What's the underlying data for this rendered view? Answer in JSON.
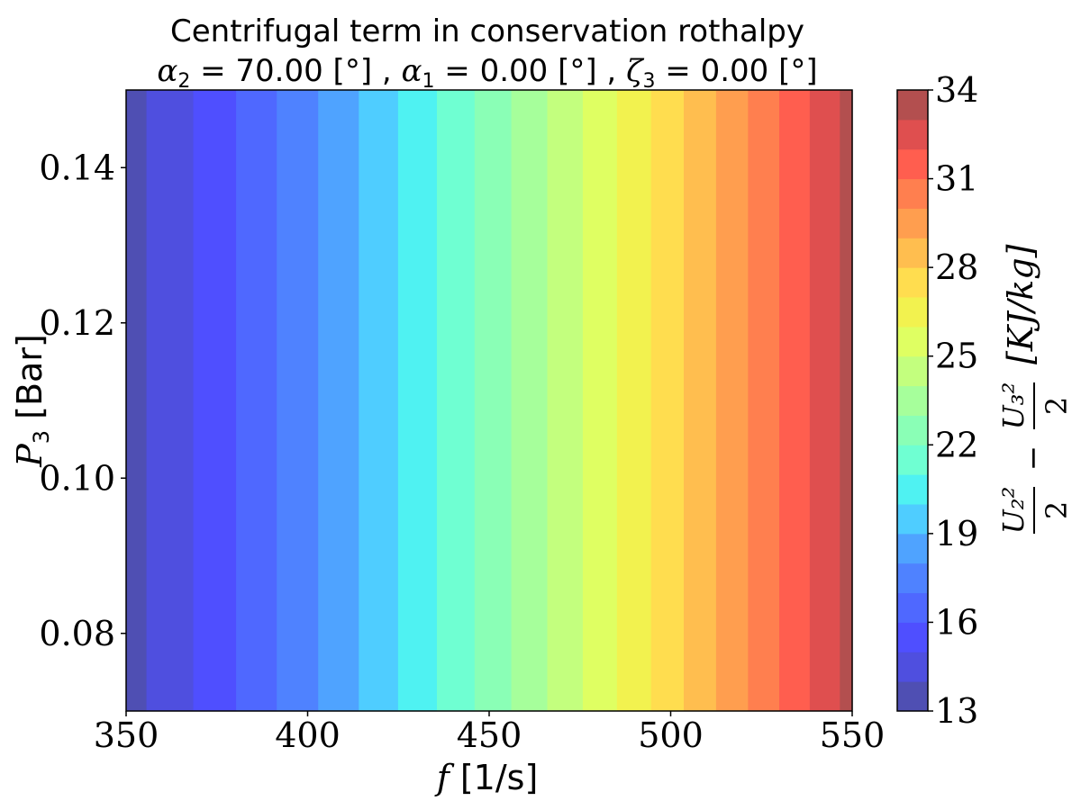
{
  "chart_data": {
    "type": "heatmap",
    "subtype": "filled-contour",
    "title": "Centrifugal term in conservation rothalpy",
    "subtitle": {
      "alpha2_sym": "α",
      "alpha2_sub": "2",
      "alpha2_val": " = 70.00 [°] , ",
      "alpha1_sym": "α",
      "alpha1_sub": "1",
      "alpha1_val": " = 0.00 [°] , ",
      "zeta3_sym": "ζ",
      "zeta3_sub": "3",
      "zeta3_val": " = 0.00 [°]"
    },
    "xlabel": {
      "sym": "f",
      "unit": " [1/s]"
    },
    "ylabel": {
      "sym": "P",
      "sub": "3",
      "unit": " [Bar]"
    },
    "colorbar_label": "U₂²/2 − U₃²/2 [KJ/kg]",
    "xlim": [
      350,
      550
    ],
    "ylim": [
      0.07,
      0.15
    ],
    "xticks": [
      "350",
      "400",
      "450",
      "500",
      "550"
    ],
    "yticks": [
      "0.08",
      "0.10",
      "0.12",
      "0.14"
    ],
    "colorbar_ticks": [
      "13",
      "16",
      "19",
      "22",
      "25",
      "28",
      "31",
      "34"
    ],
    "colorbar_range": [
      13,
      34
    ],
    "levels": [
      13,
      14,
      15,
      16,
      17,
      18,
      19,
      20,
      21,
      22,
      23,
      24,
      25,
      26,
      27,
      28,
      29,
      30,
      31,
      32,
      33,
      34
    ],
    "level_colors": [
      "#4f4fb3",
      "#4f4fdf",
      "#4f4fff",
      "#4f68ff",
      "#4f82ff",
      "#4fa3ff",
      "#4fcdff",
      "#4ff2f2",
      "#6fffd2",
      "#8affb6",
      "#a6ff9b",
      "#c3ff7e",
      "#dfff62",
      "#f2f24f",
      "#ffdd4f",
      "#ffbe4f",
      "#ff9e4f",
      "#ff7f4f",
      "#ff5e4f",
      "#df4f4f",
      "#b34f4f"
    ],
    "band_boundaries_f": [
      355.6,
      368.5,
      380.3,
      391.5,
      402.9,
      414.1,
      424.9,
      435.6,
      446.0,
      456.1,
      466.0,
      475.8,
      485.2,
      494.6,
      503.6,
      512.5,
      521.3,
      529.9,
      538.3,
      546.6
    ],
    "centrifugal_term_vs_f": {
      "f": [
        350,
        550
      ],
      "value": [
        13,
        34
      ]
    }
  }
}
